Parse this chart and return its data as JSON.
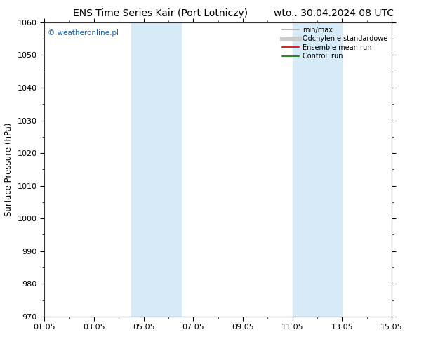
{
  "title_left": "ENS Time Series Kair (Port Lotniczy)",
  "title_right": "wto.. 30.04.2024 08 UTC",
  "ylabel": "Surface Pressure (hPa)",
  "ylim": [
    970,
    1060
  ],
  "yticks": [
    970,
    980,
    990,
    1000,
    1010,
    1020,
    1030,
    1040,
    1050,
    1060
  ],
  "xlabel_dates": [
    "01.05",
    "03.05",
    "05.05",
    "07.05",
    "09.05",
    "11.05",
    "13.05",
    "15.05"
  ],
  "xtick_positions": [
    0,
    2,
    4,
    6,
    8,
    10,
    12,
    14
  ],
  "x_start_days": 0,
  "x_end_days": 14,
  "shaded_bands": [
    {
      "x_start": 3.5,
      "x_end": 5.5,
      "color": "#d6eaf8"
    },
    {
      "x_start": 10.0,
      "x_end": 12.0,
      "color": "#d6eaf8"
    }
  ],
  "legend_items": [
    {
      "label": "min/max",
      "color": "#aaaaaa",
      "lw": 1.2
    },
    {
      "label": "Odchylenie standardowe",
      "color": "#cccccc",
      "lw": 5.0
    },
    {
      "label": "Ensemble mean run",
      "color": "#cc0000",
      "lw": 1.2
    },
    {
      "label": "Controll run",
      "color": "#007700",
      "lw": 1.2
    }
  ],
  "watermark": "© weatheronline.pl",
  "watermark_color": "#1a5fa8",
  "background_color": "#ffffff",
  "title_fontsize": 10,
  "tick_fontsize": 8,
  "ylabel_fontsize": 8.5
}
